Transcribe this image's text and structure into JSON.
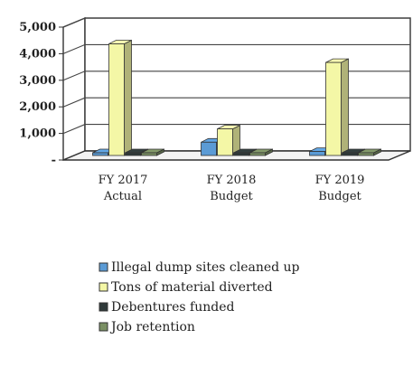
{
  "chart_data": {
    "type": "bar",
    "style": "3d-clustered-column",
    "categories": [
      "FY 2017\nActual",
      "FY 2018\nBudget",
      "FY 2019\nBudget"
    ],
    "series": [
      {
        "name": "Illegal dump sites cleaned up",
        "values": [
          100,
          500,
          150
        ],
        "color": "#5b9bd5"
      },
      {
        "name": "Tons of material diverted",
        "values": [
          4200,
          1000,
          3500
        ],
        "color": "#f4f7a6"
      },
      {
        "name": "Debentures funded",
        "values": [
          20,
          20,
          20
        ],
        "color": "#2f3a3a"
      },
      {
        "name": "Job retention",
        "values": [
          60,
          30,
          60
        ],
        "color": "#7a8f63"
      }
    ],
    "y_ticks": [
      "-",
      "1,000",
      "2,000",
      "3,000",
      "4,000",
      "5,000"
    ],
    "ylim": [
      0,
      5000
    ],
    "grid": true,
    "legend_position": "bottom-left"
  }
}
